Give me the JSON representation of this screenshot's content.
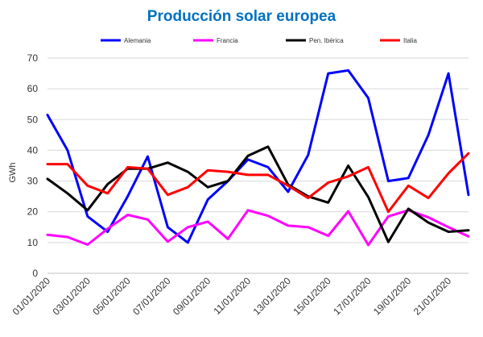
{
  "chart_data": {
    "type": "line",
    "title": "Producción solar europea",
    "ylabel": "GWh",
    "xlabel": "",
    "ylim": [
      0,
      70
    ],
    "yticks": [
      0,
      10,
      20,
      30,
      40,
      50,
      60,
      70
    ],
    "grid": true,
    "legend_position": "top",
    "x": [
      "01/01/2020",
      "02/01/2020",
      "03/01/2020",
      "04/01/2020",
      "05/01/2020",
      "06/01/2020",
      "07/01/2020",
      "08/01/2020",
      "09/01/2020",
      "10/01/2020",
      "11/01/2020",
      "12/01/2020",
      "13/01/2020",
      "14/01/2020",
      "15/01/2020",
      "16/01/2020",
      "17/01/2020",
      "18/01/2020",
      "19/01/2020",
      "20/01/2020",
      "21/01/2020",
      "22/01/2020"
    ],
    "xtick_labels": [
      "01/01/2020",
      "03/01/2020",
      "05/01/2020",
      "07/01/2020",
      "09/01/2020",
      "11/01/2020",
      "13/01/2020",
      "15/01/2020",
      "17/01/2020",
      "19/01/2020",
      "21/01/2020"
    ],
    "series": [
      {
        "name": "Alemania",
        "color": "#0000ff",
        "values": [
          51.5,
          40,
          18.5,
          13.5,
          25,
          38,
          15,
          10,
          24,
          30,
          37,
          34.5,
          26.5,
          38.5,
          65,
          66,
          57,
          30,
          31,
          45,
          65,
          25.5
        ]
      },
      {
        "name": "Francia",
        "color": "#ff00ff",
        "values": [
          12.5,
          11.8,
          9.3,
          14.5,
          19,
          17.5,
          10.3,
          15,
          16.8,
          11.2,
          20.5,
          18.7,
          15.5,
          15,
          12.2,
          20.2,
          9.2,
          18.5,
          20.5,
          18.2,
          15,
          12
        ]
      },
      {
        "name": "Pen. Ibérica",
        "color": "#000000",
        "values": [
          30.7,
          26,
          20.5,
          29,
          34,
          34,
          36,
          33,
          28,
          30,
          38.2,
          41.2,
          28.8,
          25,
          23,
          35,
          24.8,
          10.2,
          21,
          16.5,
          13.5,
          14
        ]
      },
      {
        "name": "Italia",
        "color": "#ff0000",
        "values": [
          35.5,
          35.5,
          28.5,
          26,
          34.5,
          34,
          25.5,
          28,
          33.5,
          33,
          32,
          32,
          28.5,
          24.5,
          29.5,
          31.5,
          34.5,
          20,
          28.5,
          24.5,
          32.5,
          39
        ]
      }
    ]
  }
}
